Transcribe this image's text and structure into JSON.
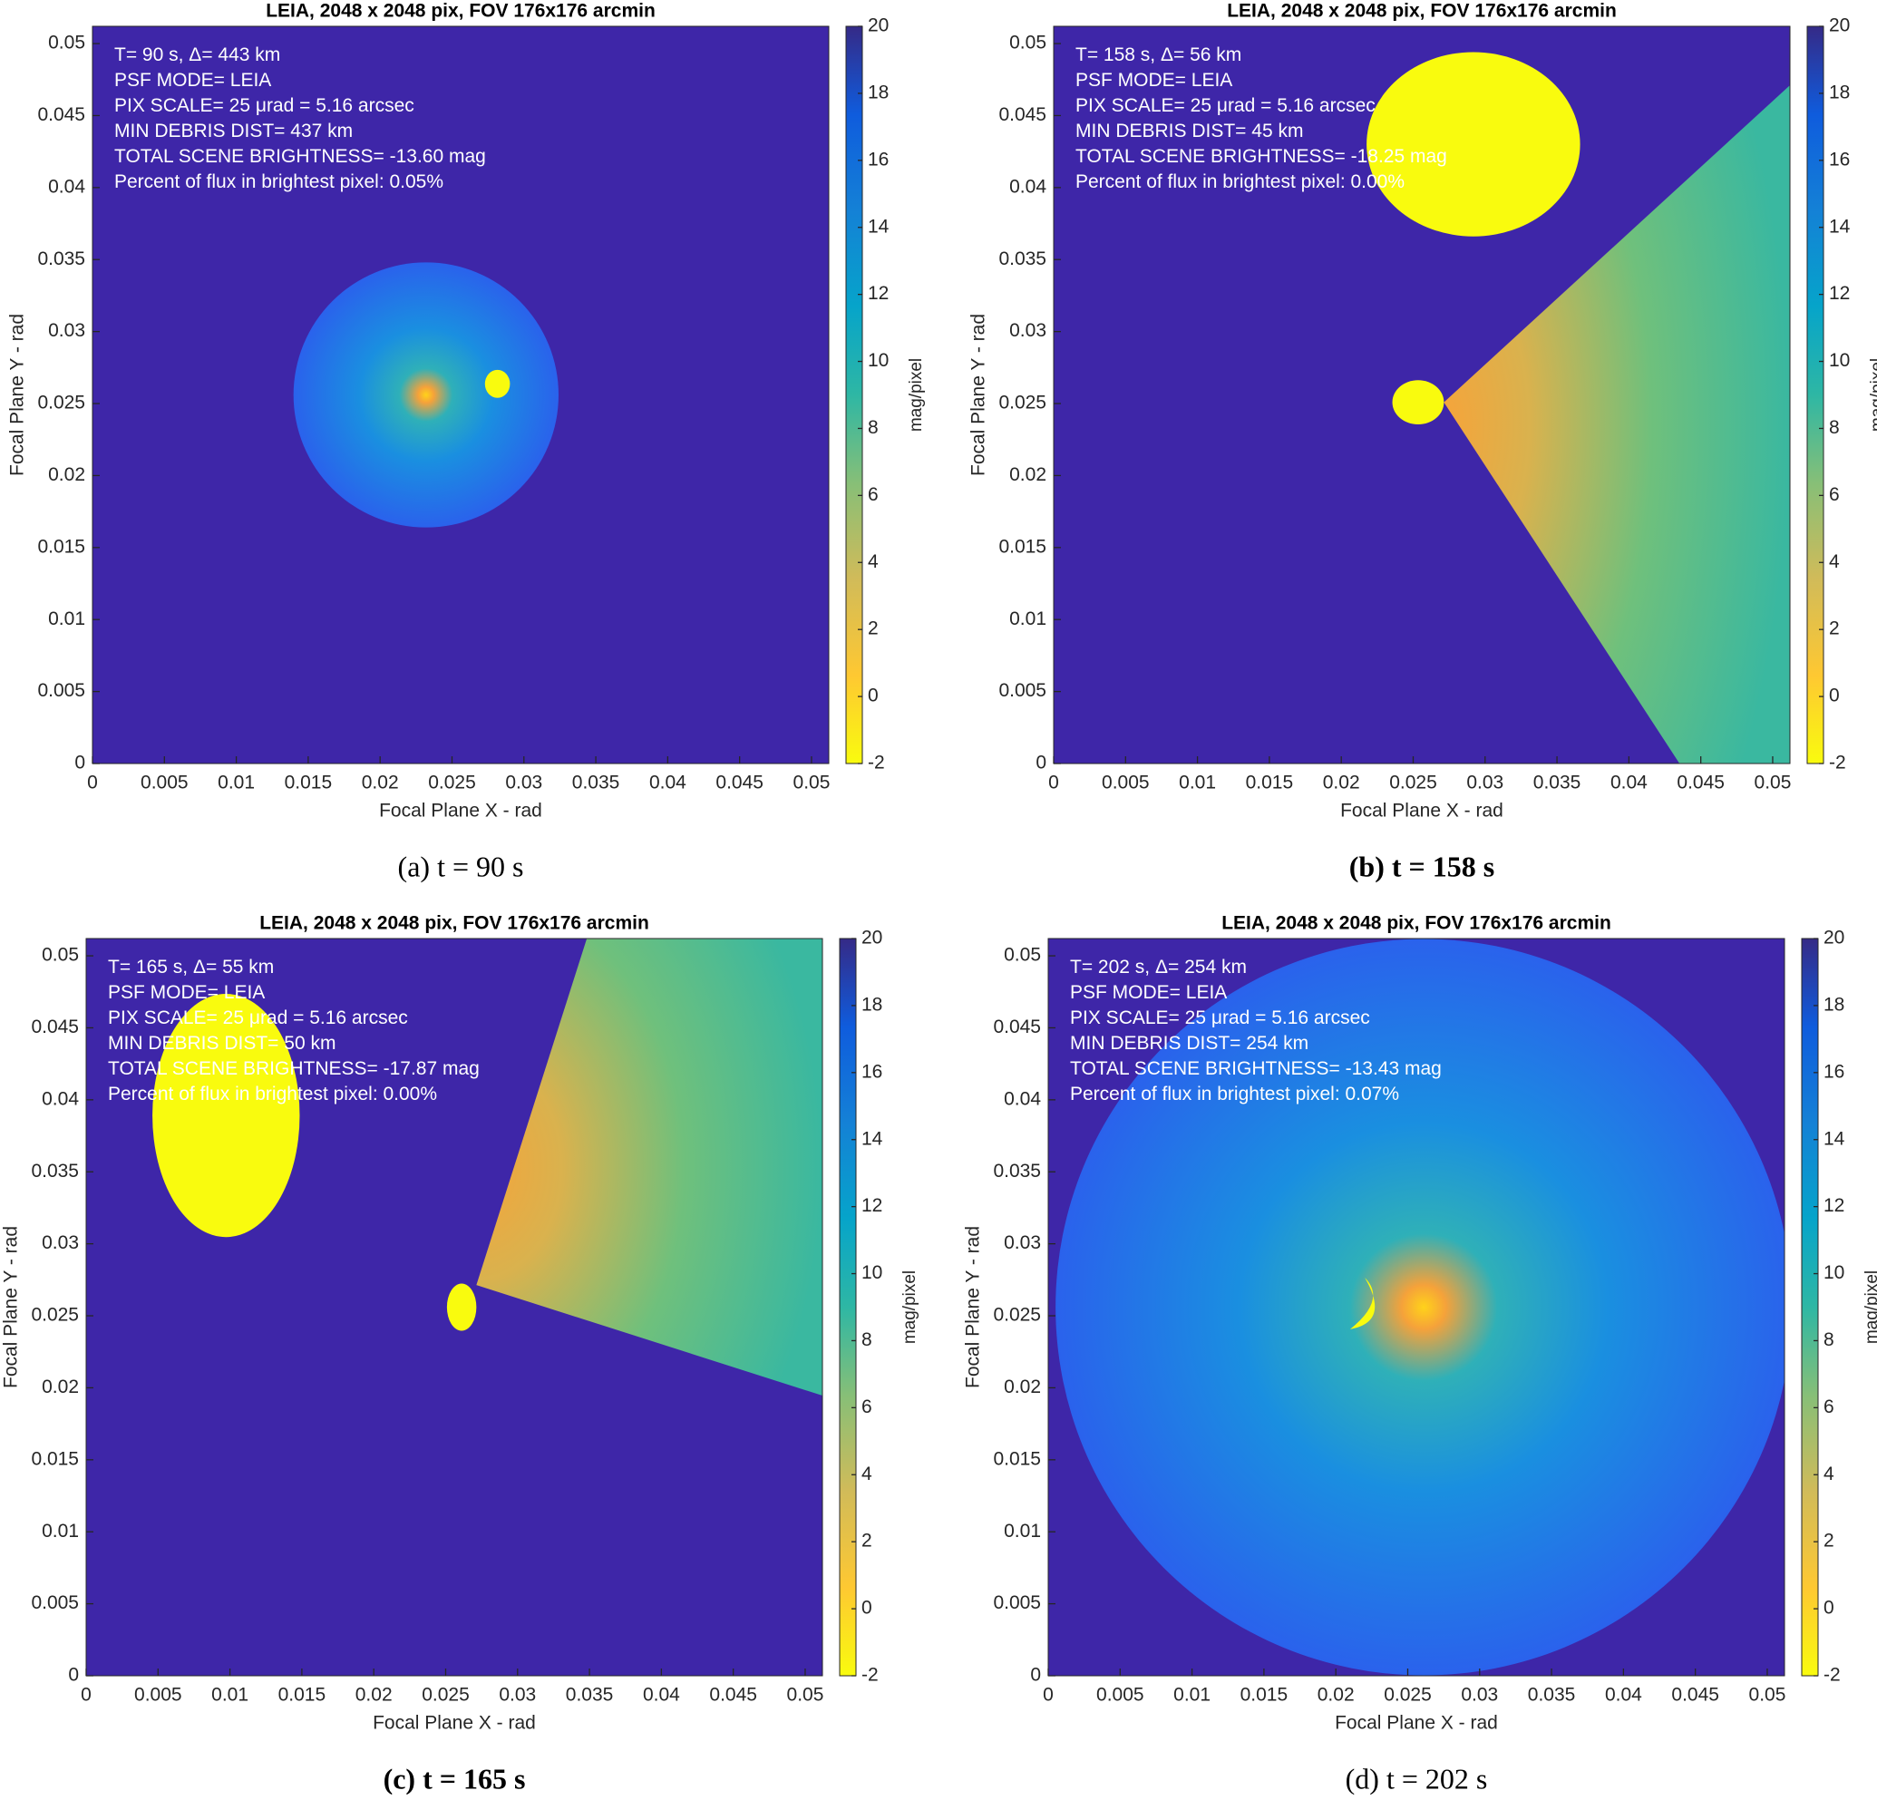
{
  "chart_data": [
    {
      "type": "heatmap",
      "title": "LEIA, 2048 x 2048 pix, FOV 176x176 arcmin",
      "xlabel": "Focal Plane X - rad",
      "ylabel": "Focal Plane Y - rad",
      "colorbar_label": "mag/pixel",
      "xlim": [
        0,
        0.0512
      ],
      "ylim": [
        0,
        0.0512
      ],
      "xticks": [
        0,
        0.005,
        0.01,
        0.015,
        0.02,
        0.025,
        0.03,
        0.035,
        0.04,
        0.045,
        0.05
      ],
      "yticks": [
        0,
        0.005,
        0.01,
        0.015,
        0.02,
        0.025,
        0.03,
        0.035,
        0.04,
        0.045,
        0.05
      ],
      "clim": [
        -2,
        20
      ],
      "cticks": [
        -2,
        0,
        2,
        4,
        6,
        8,
        10,
        12,
        14,
        16,
        18,
        20
      ],
      "annotations": [
        "T= 90 s, Δ= 443 km",
        "PSF MODE= LEIA",
        "PIX SCALE= 25 μrad = 5.16 arcsec",
        "MIN DEBRIS DIST= 437 km",
        "TOTAL SCENE BRIGHTNESS= -13.60 mag",
        "Percent of flux in brightest pixel: 0.05%"
      ],
      "caption": "(a) t = 90 s",
      "caption_bold": false
    },
    {
      "type": "heatmap",
      "title": "LEIA, 2048 x 2048 pix, FOV 176x176 arcmin",
      "xlabel": "Focal Plane X - rad",
      "ylabel": "Focal Plane Y - rad",
      "colorbar_label": "mag/pixel",
      "xlim": [
        0,
        0.0512
      ],
      "ylim": [
        0,
        0.0512
      ],
      "xticks": [
        0,
        0.005,
        0.01,
        0.015,
        0.02,
        0.025,
        0.03,
        0.035,
        0.04,
        0.045,
        0.05
      ],
      "yticks": [
        0,
        0.005,
        0.01,
        0.015,
        0.02,
        0.025,
        0.03,
        0.035,
        0.04,
        0.045,
        0.05
      ],
      "clim": [
        -2,
        20
      ],
      "cticks": [
        -2,
        0,
        2,
        4,
        6,
        8,
        10,
        12,
        14,
        16,
        18,
        20
      ],
      "annotations": [
        "T= 158 s, Δ= 56 km",
        "PSF MODE= LEIA",
        "PIX SCALE= 25 μrad = 5.16 arcsec",
        "MIN DEBRIS DIST= 45 km",
        "TOTAL SCENE BRIGHTNESS= -18.25 mag",
        "Percent of flux in brightest pixel: 0.00%"
      ],
      "caption": "(b) t = 158 s",
      "caption_bold": true
    },
    {
      "type": "heatmap",
      "title": "LEIA, 2048 x 2048 pix, FOV 176x176 arcmin",
      "xlabel": "Focal Plane X - rad",
      "ylabel": "Focal Plane Y - rad",
      "colorbar_label": "mag/pixel",
      "xlim": [
        0,
        0.0512
      ],
      "ylim": [
        0,
        0.0512
      ],
      "xticks": [
        0,
        0.005,
        0.01,
        0.015,
        0.02,
        0.025,
        0.03,
        0.035,
        0.04,
        0.045,
        0.05
      ],
      "yticks": [
        0,
        0.005,
        0.01,
        0.015,
        0.02,
        0.025,
        0.03,
        0.035,
        0.04,
        0.045,
        0.05
      ],
      "clim": [
        -2,
        20
      ],
      "cticks": [
        -2,
        0,
        2,
        4,
        6,
        8,
        10,
        12,
        14,
        16,
        18,
        20
      ],
      "annotations": [
        "T= 165 s, Δ= 55 km",
        "PSF MODE= LEIA",
        "PIX SCALE= 25 μrad = 5.16 arcsec",
        "MIN DEBRIS DIST= 50 km",
        "TOTAL SCENE BRIGHTNESS= -17.87 mag",
        "Percent of flux in brightest pixel: 0.00%"
      ],
      "caption": "(c) t = 165 s",
      "caption_bold": true
    },
    {
      "type": "heatmap",
      "title": "LEIA, 2048 x 2048 pix, FOV 176x176 arcmin",
      "xlabel": "Focal Plane X - rad",
      "ylabel": "Focal Plane Y - rad",
      "colorbar_label": "mag/pixel",
      "xlim": [
        0,
        0.0512
      ],
      "ylim": [
        0,
        0.0512
      ],
      "xticks": [
        0,
        0.005,
        0.01,
        0.015,
        0.02,
        0.025,
        0.03,
        0.035,
        0.04,
        0.045,
        0.05
      ],
      "yticks": [
        0,
        0.005,
        0.01,
        0.015,
        0.02,
        0.025,
        0.03,
        0.035,
        0.04,
        0.045,
        0.05
      ],
      "clim": [
        -2,
        20
      ],
      "cticks": [
        -2,
        0,
        2,
        4,
        6,
        8,
        10,
        12,
        14,
        16,
        18,
        20
      ],
      "annotations": [
        "T= 202 s, Δ= 254 km",
        "PSF MODE= LEIA",
        "PIX SCALE= 25 μrad = 5.16 arcsec",
        "MIN DEBRIS DIST= 254 km",
        "TOTAL SCENE BRIGHTNESS= -13.43 mag",
        "Percent of flux in brightest pixel: 0.07%"
      ],
      "caption": "(d) t = 202 s",
      "caption_bold": false
    }
  ]
}
